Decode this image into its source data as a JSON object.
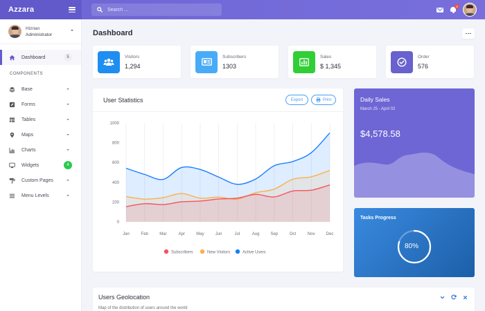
{
  "brand": {
    "name": "Azzara"
  },
  "search": {
    "placeholder": "Search ..."
  },
  "notifications": {
    "count": "4"
  },
  "user": {
    "name": "Hizrian",
    "role": "Administrator"
  },
  "sidebar": {
    "dashboard": {
      "label": "Dashboard",
      "badge": "5"
    },
    "section": "COMPONENTS",
    "items": [
      {
        "label": "Base",
        "icon": "layers-icon"
      },
      {
        "label": "Forms",
        "icon": "pen-square-icon"
      },
      {
        "label": "Tables",
        "icon": "table-icon"
      },
      {
        "label": "Maps",
        "icon": "map-marker-icon"
      },
      {
        "label": "Charts",
        "icon": "bar-chart-icon"
      },
      {
        "label": "Widgets",
        "icon": "desktop-icon",
        "badge": "4"
      },
      {
        "label": "Custom Pages",
        "icon": "paint-roller-icon"
      },
      {
        "label": "Menu Levels",
        "icon": "bars-icon"
      }
    ]
  },
  "page": {
    "title": "Dashboard"
  },
  "stats": [
    {
      "label": "Visitors",
      "value": "1,294",
      "color": "#1f8ef1",
      "icon": "users-icon"
    },
    {
      "label": "Subscribers",
      "value": "1303",
      "color": "#48abf7",
      "icon": "newspaper-icon"
    },
    {
      "label": "Sales",
      "value": "$ 1,345",
      "color": "#31ce36",
      "icon": "chart-bar-icon"
    },
    {
      "label": "Order",
      "value": "576",
      "color": "#6861ce",
      "icon": "check-circle-icon"
    }
  ],
  "user_statistics": {
    "title": "User Statistics",
    "export_label": "Export",
    "print_label": "Print"
  },
  "chart_data": {
    "type": "line",
    "categories": [
      "Jan",
      "Feb",
      "Mar",
      "Apr",
      "May",
      "Jun",
      "Jul",
      "Aug",
      "Sep",
      "Oct",
      "Nov",
      "Dec"
    ],
    "yticks": [
      "0",
      "200",
      "400",
      "600",
      "800",
      "1000"
    ],
    "ylim": [
      0,
      1000
    ],
    "legend_position": "bottom",
    "series": [
      {
        "name": "Subscribers",
        "color": "#f3545d",
        "values": [
          154,
          184,
          175,
          203,
          210,
          231,
          240,
          278,
          252,
          312,
          320,
          374
        ]
      },
      {
        "name": "New Visitors",
        "color": "#fdaf4b",
        "values": [
          256,
          230,
          245,
          287,
          240,
          250,
          230,
          295,
          331,
          431,
          456,
          521
        ]
      },
      {
        "name": "Active Users",
        "color": "#177dff",
        "values": [
          542,
          480,
          430,
          550,
          530,
          453,
          380,
          434,
          568,
          610,
          700,
          900
        ]
      }
    ]
  },
  "daily_sales": {
    "title": "Daily Sales",
    "date_range": "March 25 - April 02",
    "amount": "$4,578.58"
  },
  "tasks": {
    "title": "Tasks Progress",
    "percent_label": "80%",
    "progress": 0.8
  },
  "geolocation": {
    "title": "Users Geolocation",
    "subtitle": "Map of the distribution of users around the world"
  }
}
